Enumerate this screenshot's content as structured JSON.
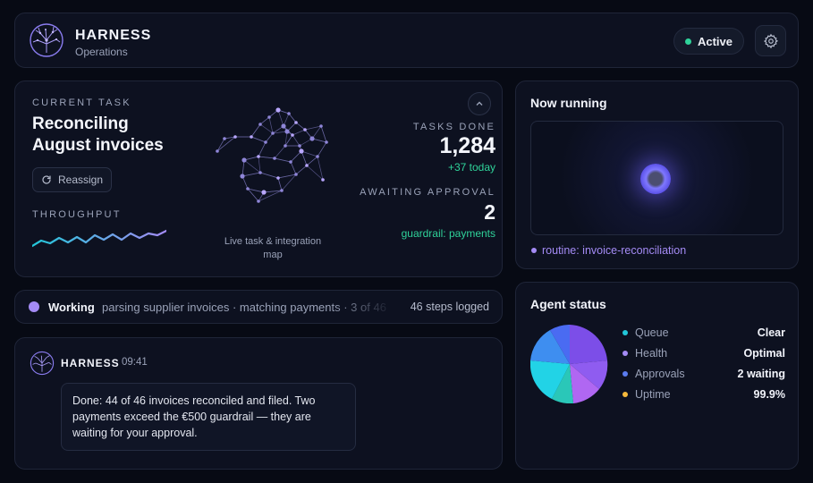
{
  "header": {
    "app_title": "HARNESS",
    "app_subtitle": "Operations",
    "status_label": "Active",
    "status_color": "#2fd39a",
    "logo_icon": "neural-tree-logo",
    "settings_icon": "gear-icon"
  },
  "task": {
    "eyebrow": "CURRENT TASK",
    "title": "Reconciling August invoices",
    "reassign_label": "Reassign",
    "reassign_icon": "refresh-icon",
    "throughput_label": "THROUGHPUT",
    "map_caption": "Live task & integration map",
    "collapse_icon": "chevron-up-icon",
    "tasks_done_label": "TASKS DONE",
    "tasks_done_value": "1,284",
    "tasks_done_delta": "+37 today",
    "awaiting_label": "AWAITING APPROVAL",
    "awaiting_value": "2",
    "awaiting_note": "guardrail: payments"
  },
  "working": {
    "label": "Working",
    "steps_text": "parsing supplier invoices · matching payments · 3 of 46",
    "steps_logged": "46 steps logged"
  },
  "message": {
    "sender": "HARNESS",
    "time": "09:41",
    "body": "Done: 44 of 46 invoices reconciled and filed. Two payments exceed the €500 guardrail — they are waiting for your approval."
  },
  "running": {
    "title": "Now running",
    "routine": "routine: invoice-reconciliation"
  },
  "agent_status": {
    "title": "Agent status",
    "stats": [
      {
        "label": "Queue",
        "value": "Clear",
        "color": "#22c7d9"
      },
      {
        "label": "Health",
        "value": "Optimal",
        "color": "#a48bf5"
      },
      {
        "label": "Approvals",
        "value": "2 waiting",
        "color": "#5b7cf0"
      },
      {
        "label": "Uptime",
        "value": "99.9%",
        "color": "#f5b93c"
      }
    ]
  }
}
